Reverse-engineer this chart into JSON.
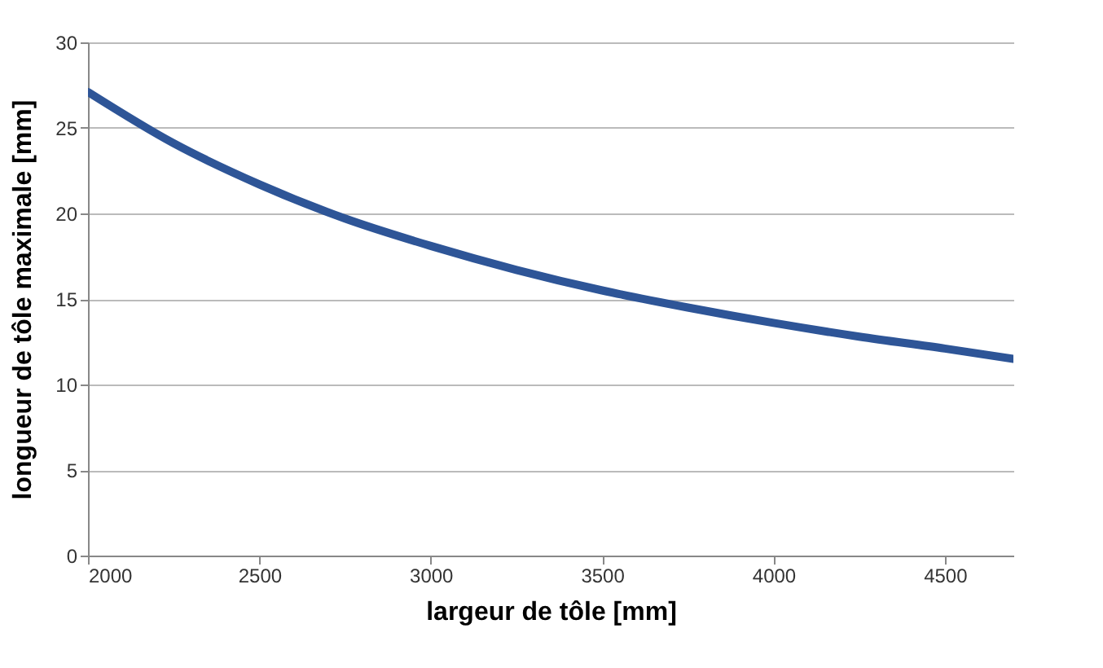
{
  "chart_data": {
    "type": "line",
    "xlabel": "largeur de tôle [mm]",
    "ylabel": "longueur de tôle maximale [mm]",
    "x": [
      2000,
      2250,
      2500,
      2750,
      3000,
      3250,
      3500,
      3750,
      4000,
      4250,
      4500,
      4700
    ],
    "series": [
      {
        "color": "#2e5597",
        "values": [
          27.1,
          24.1,
          21.7,
          19.7,
          18.1,
          16.7,
          15.5,
          14.5,
          13.6,
          12.8,
          12.1,
          11.5
        ]
      }
    ],
    "xlim": [
      2000,
      4700
    ],
    "xticks": [
      2000,
      2500,
      3000,
      3500,
      4000,
      4500
    ],
    "ylim": [
      0,
      30
    ],
    "yticks": [
      0,
      5,
      10,
      15,
      20,
      25,
      30
    ],
    "grid": "y",
    "marker": "none",
    "line_style": "solid"
  }
}
